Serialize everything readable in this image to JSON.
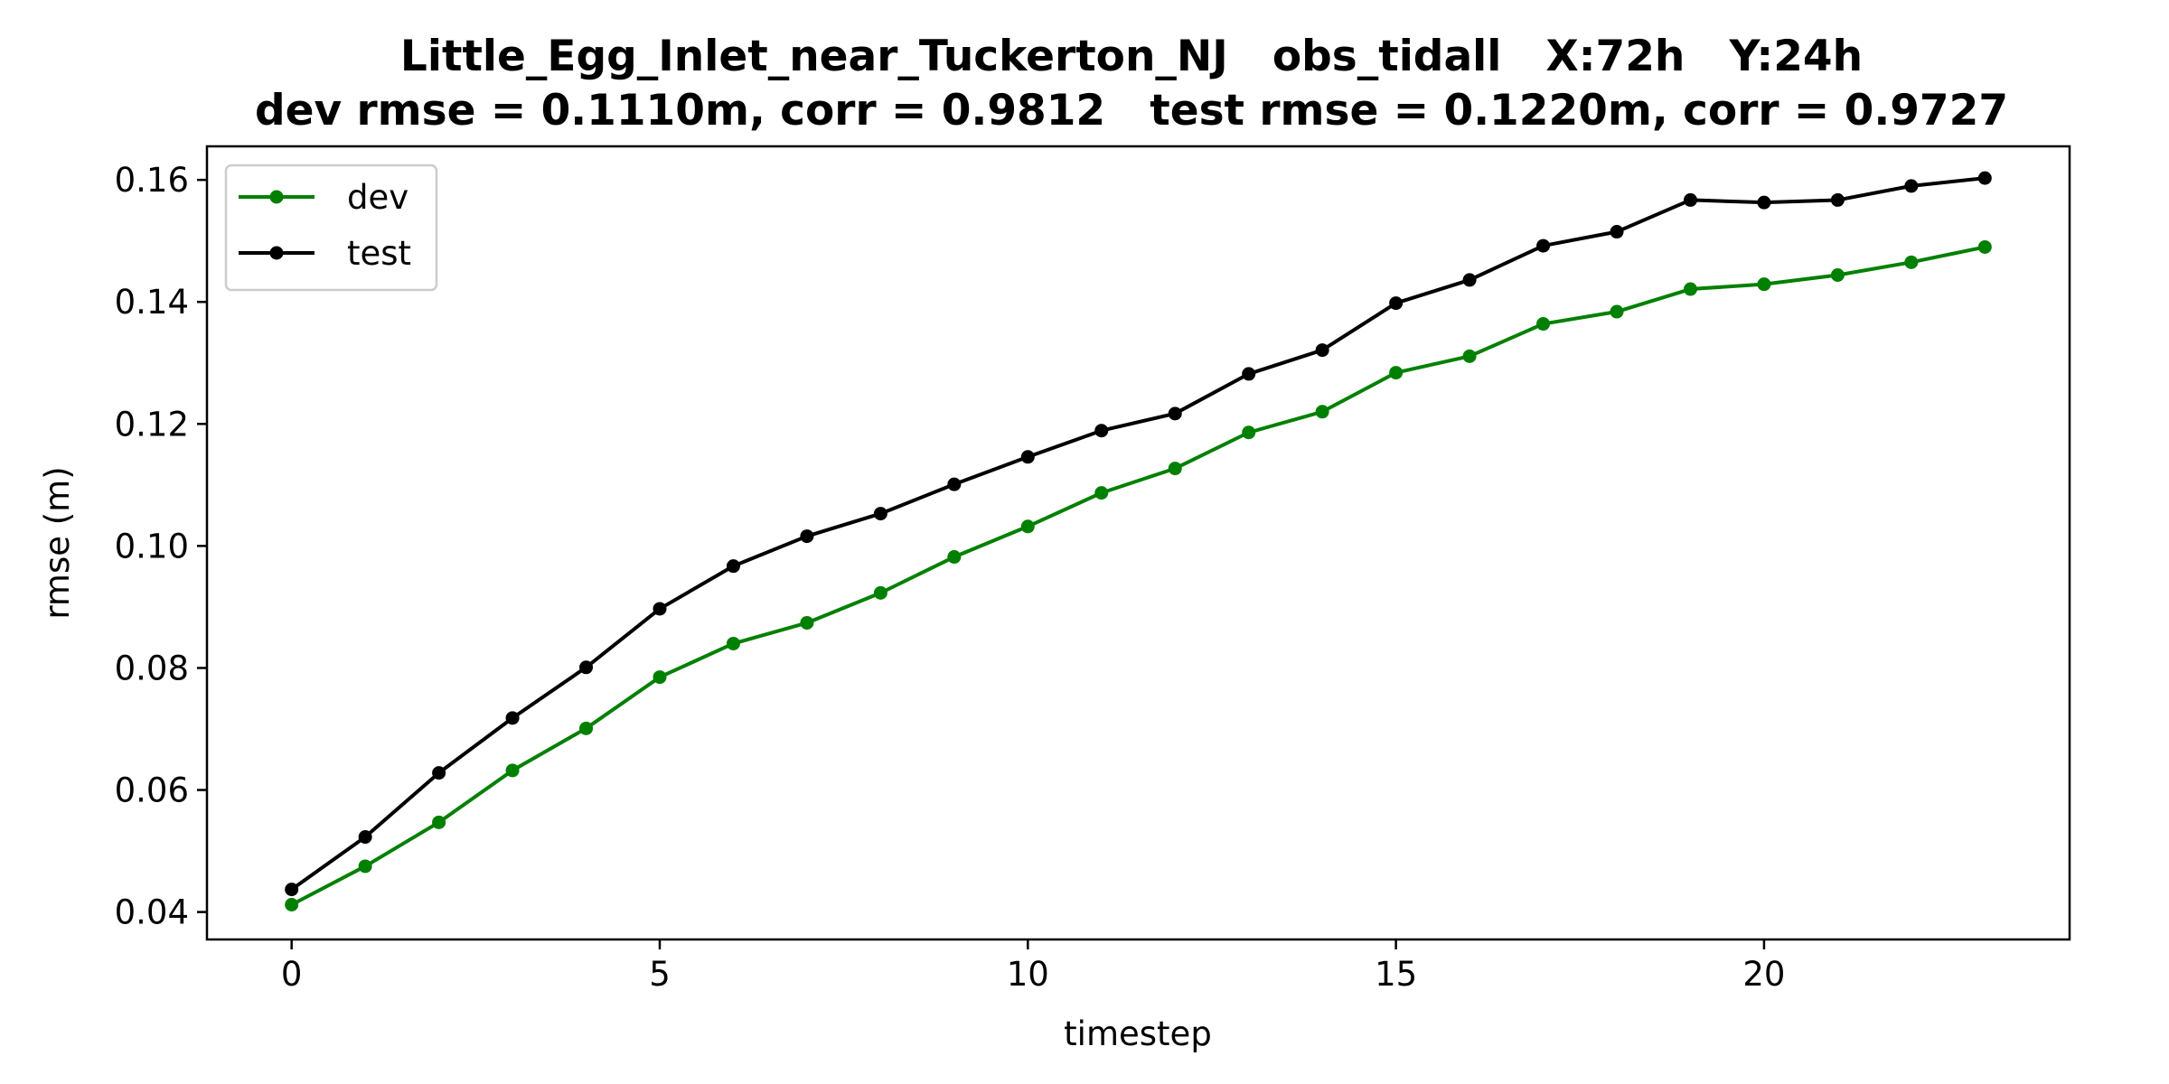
{
  "chart_data": {
    "type": "line",
    "title": "Little_Egg_Inlet_near_Tuckerton_NJ   obs_tidall   X:72h   Y:24h",
    "subtitle": "dev rmse = 0.1110m, corr = 0.9812   test rmse = 0.1220m, corr = 0.9727",
    "xlabel": "timestep",
    "ylabel": "rmse (m)",
    "xlim": [
      -1.15,
      24.15
    ],
    "ylim": [
      0.0355,
      0.1655
    ],
    "xticks": [
      0,
      5,
      10,
      15,
      20
    ],
    "yticks": [
      0.04,
      0.06,
      0.08,
      0.1,
      0.12,
      0.14,
      0.16
    ],
    "ytick_labels": [
      "0.04",
      "0.06",
      "0.08",
      "0.10",
      "0.12",
      "0.14",
      "0.16"
    ],
    "grid": false,
    "legend_position": "upper-left",
    "x": [
      0,
      1,
      2,
      3,
      4,
      5,
      6,
      7,
      8,
      9,
      10,
      11,
      12,
      13,
      14,
      15,
      16,
      17,
      18,
      19,
      20,
      21,
      22,
      23
    ],
    "series": [
      {
        "name": "dev",
        "color": "#008000",
        "values": [
          0.0412,
          0.0475,
          0.0547,
          0.0632,
          0.0701,
          0.0785,
          0.084,
          0.0874,
          0.0923,
          0.0982,
          0.1032,
          0.1087,
          0.1127,
          0.1186,
          0.122,
          0.1284,
          0.1311,
          0.1364,
          0.1384,
          0.1421,
          0.1429,
          0.1444,
          0.1465,
          0.149
        ]
      },
      {
        "name": "test",
        "color": "#000000",
        "values": [
          0.0437,
          0.0523,
          0.0628,
          0.0718,
          0.0801,
          0.0897,
          0.0967,
          0.1016,
          0.1053,
          0.1101,
          0.1146,
          0.1189,
          0.1217,
          0.1282,
          0.1321,
          0.1398,
          0.1436,
          0.1492,
          0.1515,
          0.1567,
          0.1563,
          0.1567,
          0.159,
          0.1603
        ]
      }
    ]
  }
}
